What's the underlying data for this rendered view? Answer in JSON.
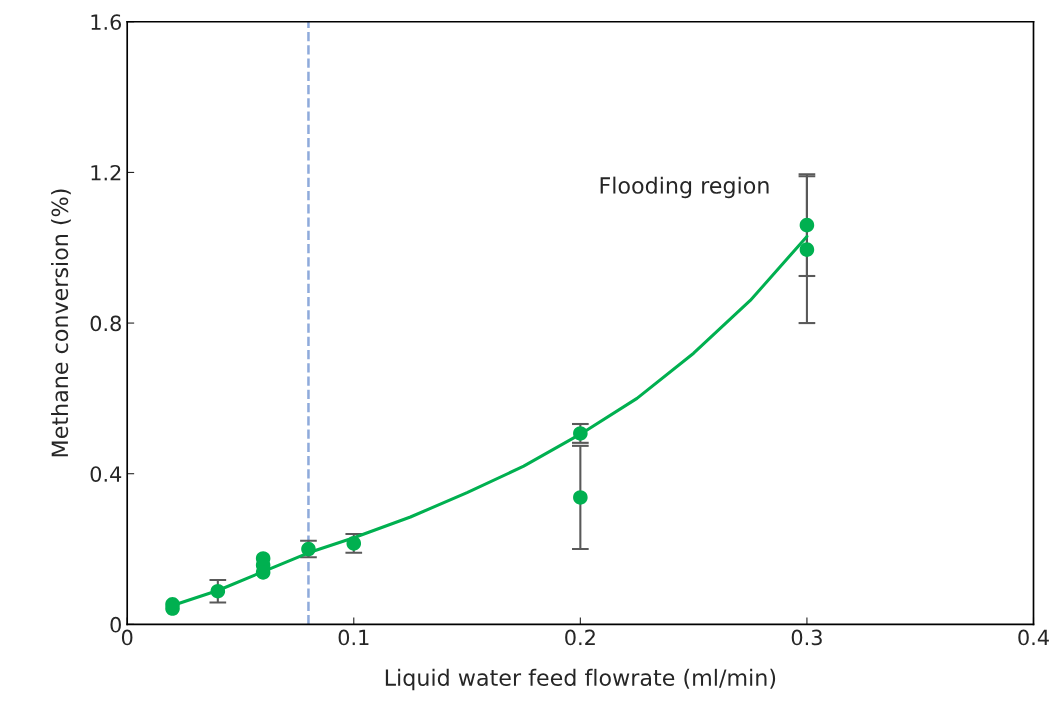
{
  "chart_data": {
    "type": "scatter",
    "xlabel": "Liquid water feed flowrate (ml/min)",
    "ylabel": "Methane conversion (%)",
    "xlim": [
      0,
      0.4
    ],
    "xticks": [
      0,
      0.1,
      0.2,
      0.3,
      0.4
    ],
    "ylim": [
      0,
      1.6
    ],
    "yticks": [
      0,
      0.4,
      0.8,
      1.2,
      1.6
    ],
    "grid": false,
    "legend": false,
    "annotations": [
      "Flooding region"
    ],
    "ref_lines": [
      {
        "axis": "x",
        "value": 0.08,
        "color": "#8eaadb",
        "line_style": "dashed"
      }
    ],
    "series": [
      {
        "color": "#00b050",
        "marker": "circle",
        "x": [
          0.02,
          0.02,
          0.04,
          0.06,
          0.06,
          0.06,
          0.08,
          0.1,
          0.2,
          0.2,
          0.3,
          0.3
        ],
        "values": [
          0.053,
          0.042,
          0.088,
          0.175,
          0.157,
          0.138,
          0.2,
          0.215,
          0.507,
          0.337,
          1.06,
          0.995
        ],
        "errors": [
          null,
          null,
          0.03,
          null,
          null,
          null,
          0.022,
          0.025,
          0.025,
          0.137,
          0.135,
          0.195
        ]
      },
      {
        "type": "line",
        "color": "#00b050",
        "marker": "none",
        "line_style": "solid",
        "x": [
          0.02,
          0.04,
          0.06,
          0.08,
          0.1,
          0.125,
          0.15,
          0.175,
          0.2,
          0.225,
          0.25,
          0.275,
          0.3
        ],
        "values": [
          0.05,
          0.09,
          0.14,
          0.19,
          0.23,
          0.285,
          0.35,
          0.42,
          0.505,
          0.6,
          0.72,
          0.86,
          1.03
        ]
      }
    ]
  }
}
